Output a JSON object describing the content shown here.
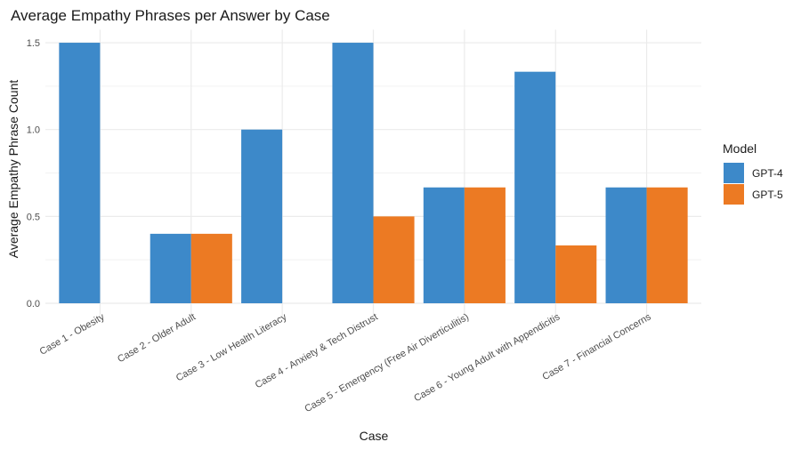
{
  "chart_data": {
    "type": "bar",
    "title": "Average Empathy Phrases per Answer by Case",
    "xlabel": "Case",
    "ylabel": "Average Empathy Phrase Count",
    "ylim": [
      0,
      1.5
    ],
    "yticks": [
      "0.0",
      "0.5",
      "1.0",
      "1.5"
    ],
    "ytick_values": [
      0,
      0.5,
      1.0,
      1.5
    ],
    "grid": true,
    "legend": {
      "title": "Model",
      "placement": "right"
    },
    "categories": [
      "Case 1 - Obesity",
      "Case 2 - Older Adult",
      "Case 3 - Low Health Literacy",
      "Case 4 - Anxiety & Tech Distrust",
      "Case 5 - Emergency (Free Air Diverticulitis)",
      "Case 6 - Young Adult with Appendicitis",
      "Case 7 - Financial Concerns"
    ],
    "series": [
      {
        "name": "GPT-4",
        "color": "#3d89c9",
        "values": [
          1.5,
          0.4,
          1.0,
          1.5,
          0.667,
          1.333,
          0.667
        ]
      },
      {
        "name": "GPT-5",
        "color": "#ec7a23",
        "values": [
          0,
          0.4,
          0,
          0.5,
          0.667,
          0.333,
          0.667
        ]
      }
    ]
  }
}
